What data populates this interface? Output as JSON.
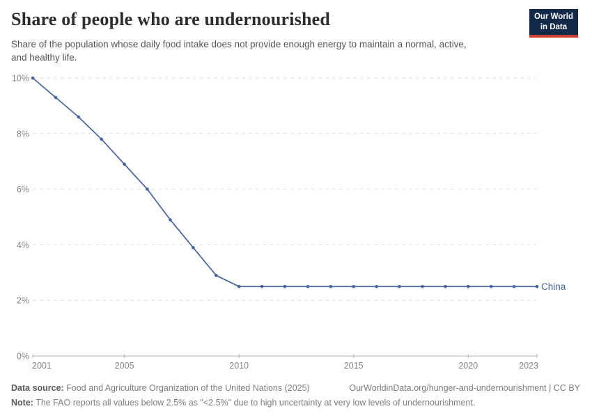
{
  "header": {
    "title": "Share of people who are undernourished",
    "subtitle": "Share of the population whose daily food intake does not provide enough energy to maintain a normal, active,\nand healthy life.",
    "logo": {
      "line1": "Our World",
      "line2": "in Data",
      "bg_color": "#12294a",
      "bar_color": "#cd3d34"
    }
  },
  "chart_data": {
    "type": "line",
    "title": "Share of people who are undernourished",
    "x": [
      2001,
      2002,
      2003,
      2004,
      2005,
      2006,
      2007,
      2008,
      2009,
      2010,
      2011,
      2012,
      2013,
      2014,
      2015,
      2016,
      2017,
      2018,
      2019,
      2020,
      2021,
      2022,
      2023
    ],
    "series": [
      {
        "name": "China",
        "color": "#44639f",
        "values": [
          10,
          9.3,
          8.6,
          7.8,
          6.9,
          6,
          4.9,
          3.9,
          2.9,
          2.5,
          2.5,
          2.5,
          2.5,
          2.5,
          2.5,
          2.5,
          2.5,
          2.5,
          2.5,
          2.5,
          2.5,
          2.5,
          2.5
        ]
      }
    ],
    "xlabel": "",
    "ylabel": "",
    "unit": "%",
    "ylim": [
      0,
      10
    ],
    "yticks": [
      0,
      2,
      4,
      6,
      8,
      10
    ],
    "xticks": [
      2001,
      2005,
      2010,
      2015,
      2020,
      2023
    ],
    "grid": "horizontal-dashed",
    "legend_position": "end-of-line-label"
  },
  "footer": {
    "datasource_label": "Data source:",
    "datasource_text": " Food and Agriculture Organization of the United Nations (2025)",
    "link": "OurWorldinData.org/hunger-and-undernourishment | CC BY",
    "note_label": "Note:",
    "note_text": " The FAO reports all values below 2.5% as \"<2.5%\" due to high uncertainty at very low levels of undernourishment."
  }
}
